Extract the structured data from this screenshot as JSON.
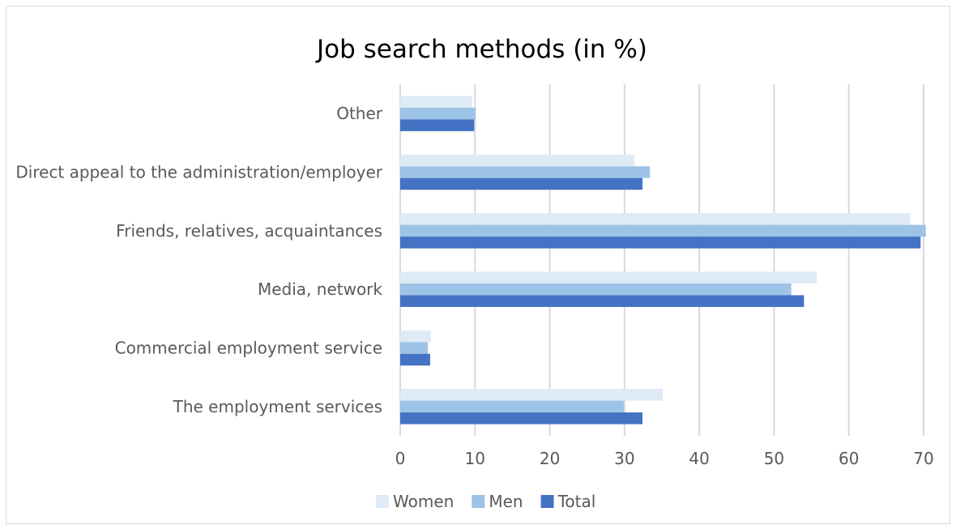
{
  "chart_data": {
    "type": "bar",
    "orientation": "horizontal",
    "title": "Job search methods (in %)",
    "categories": [
      "Other",
      "Direct appeal to the administration/employer",
      "Friends, relatives, acquaintances",
      "Media, network",
      "Commercial employment service",
      "The employment services"
    ],
    "series": [
      {
        "name": "Women",
        "color": "#deebf7",
        "values": [
          9.6,
          31.3,
          68.2,
          55.7,
          4.1,
          35.1
        ]
      },
      {
        "name": "Men",
        "color": "#9dc3e6",
        "values": [
          10.1,
          33.4,
          70.3,
          52.3,
          3.7,
          29.9
        ]
      },
      {
        "name": "Total",
        "color": "#4472c4",
        "values": [
          9.9,
          32.4,
          69.6,
          54.0,
          4.0,
          32.4
        ]
      }
    ],
    "xlim": [
      0,
      70
    ],
    "xticks": [
      "0",
      "10",
      "20",
      "30",
      "40",
      "50",
      "60",
      "70"
    ],
    "grid": "vertical",
    "legend_position": "bottom"
  }
}
